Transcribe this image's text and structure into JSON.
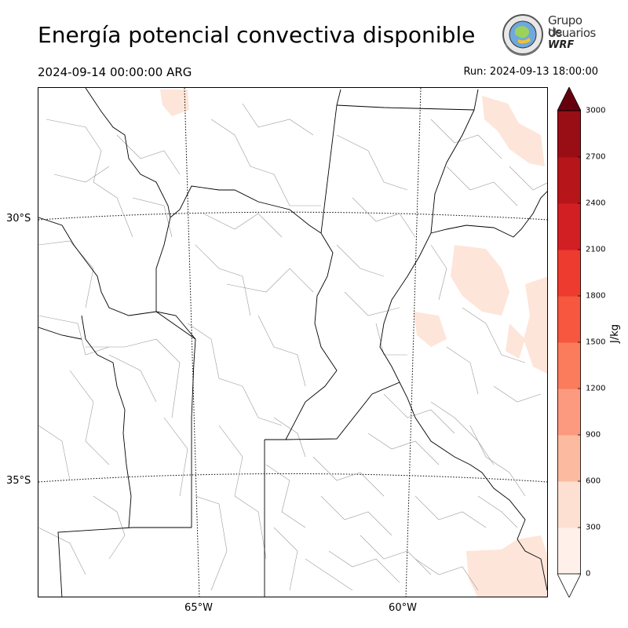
{
  "header": {
    "title": "Energía potencial convectiva disponible",
    "valid_time": "2024-09-14 00:00:00 ARG",
    "run_time": "Run: 2024-09-13 18:00:00"
  },
  "logo": {
    "line1": "Grupo de",
    "line2": "Usuarios",
    "line3": "WRF"
  },
  "map": {
    "lat_labels": [
      "30°S",
      "35°S"
    ],
    "lon_labels": [
      "65°W",
      "60°W"
    ],
    "fill_color": "#fee5d9",
    "border_color": "#000000",
    "district_color": "#888888"
  },
  "colorbar": {
    "unit": "J/kg",
    "ticks": [
      "0",
      "300",
      "600",
      "900",
      "1200",
      "1500",
      "1800",
      "2100",
      "2400",
      "2700",
      "3000"
    ],
    "colors": [
      "#fff0ea",
      "#fee0d2",
      "#fcbba1",
      "#fc9a7f",
      "#fb7b5d",
      "#f6573e",
      "#ee3b2f",
      "#d21f24",
      "#b61519",
      "#990e14",
      "#7a0a10"
    ],
    "over_color": "#67000d",
    "under_color": "#ffffff"
  }
}
